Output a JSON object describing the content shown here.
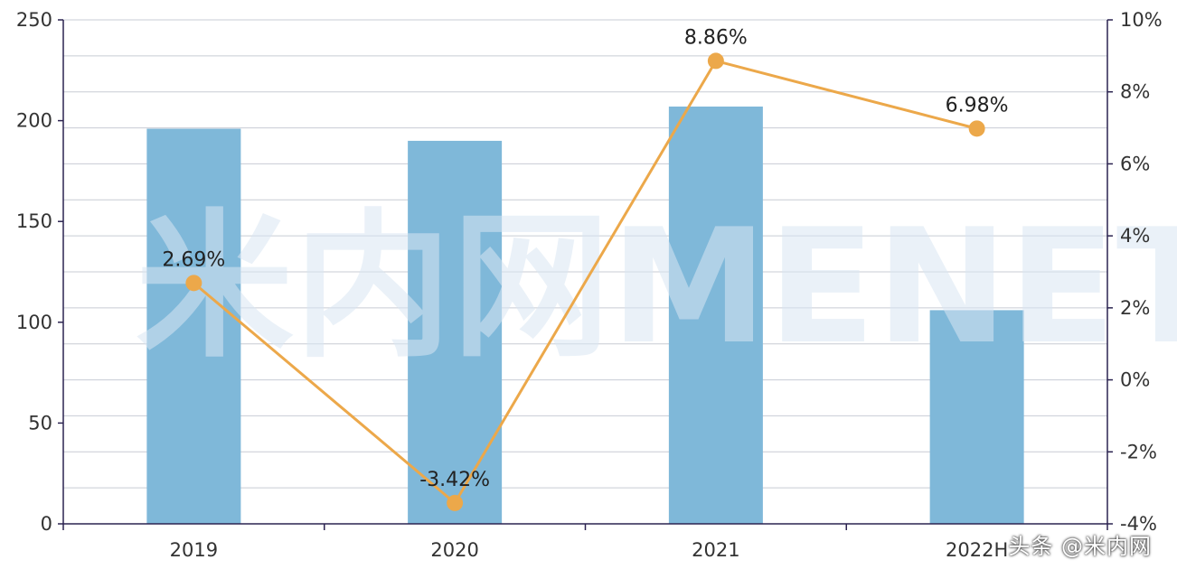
{
  "chart_data": {
    "type": "bar",
    "categories": [
      "2019",
      "2020",
      "2021",
      "2022H"
    ],
    "series": [
      {
        "type": "bar",
        "axis": "left",
        "values": [
          196,
          190,
          207,
          106
        ]
      },
      {
        "type": "line",
        "axis": "right",
        "values": [
          2.69,
          -3.42,
          8.86,
          6.98
        ],
        "labels": [
          "2.69%",
          "-3.42%",
          "8.86%",
          "6.98%"
        ]
      }
    ],
    "y_left": {
      "ylim": [
        0,
        250
      ],
      "ticks": [
        0,
        50,
        100,
        150,
        200,
        250
      ]
    },
    "y_right": {
      "ylim": [
        -4,
        10
      ],
      "ticks": [
        "-4%",
        "-2%",
        "0%",
        "2%",
        "4%",
        "6%",
        "8%",
        "10%"
      ]
    },
    "grid": true,
    "colors": {
      "bar": "#7fb8d9",
      "line": "#eca84a",
      "axis": "#2b2350",
      "grid": "#c8ccd4"
    }
  },
  "watermark": {
    "text": "米内网MENET"
  },
  "footer": {
    "text": "头条 @米内网"
  }
}
